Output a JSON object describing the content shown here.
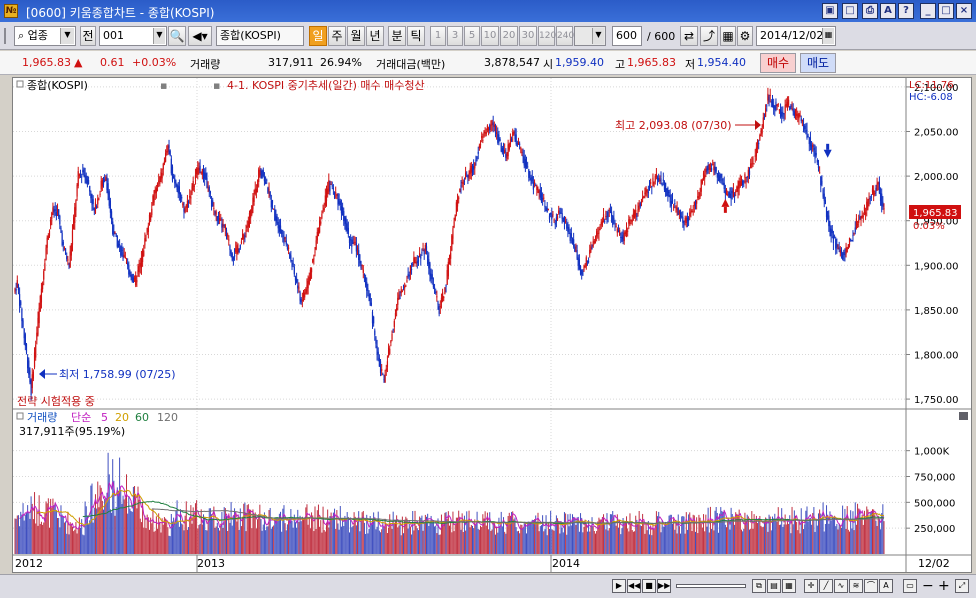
{
  "window": {
    "title": "[0600] 키움종합차트 - 종합(KOSPI)",
    "icon_label": "№"
  },
  "toolbar": {
    "market_select": "업종",
    "prev_label": "전",
    "code_value": "001",
    "name_value": "종합(KOSPI)",
    "periods": [
      "일",
      "주",
      "월",
      "년",
      "분",
      "틱"
    ],
    "minute_options": [
      "1",
      "3",
      "5",
      "10",
      "20",
      "30",
      "120",
      "240"
    ],
    "count_value": "600",
    "count_total": "/ 600",
    "date_value": "2014/12/02"
  },
  "quote": {
    "price": "1,965.83",
    "change": "0.61",
    "change_pct": "+0.03%",
    "volume_label": "거래량",
    "volume": "317,911",
    "volume_pct": "26.94%",
    "value_label": "거래대금(백만)",
    "value": "3,878,547",
    "open_label": "시",
    "open": "1,959.40",
    "high_label": "고",
    "high": "1,965.83",
    "low_label": "저",
    "low": "1,954.40",
    "buy_label": "매수",
    "sell_label": "매도"
  },
  "chart": {
    "main_tag": "종합(KOSPI)",
    "strategy": "4-1. KOSPI 중기추세(일간) 매수 매수청산",
    "lc_label": "LC:11.76",
    "hc_label": "HC:-6.08",
    "high_annotation": "최고 2,093.08 (07/30)",
    "low_annotation": "최저 1,758.99 (07/25)",
    "strategy_status": "전략 시험적용 중",
    "current_price_tag": "1,965.83",
    "current_pct_tag": "0.03%",
    "price_axis": [
      "2,100.00",
      "2,050.00",
      "2,000.00",
      "1,950.00",
      "1,900.00",
      "1,850.00",
      "1,800.00",
      "1,750.00"
    ],
    "volume_legend_title": "거래량",
    "volume_legend_ma": "단순",
    "volume_ma_periods": [
      "5",
      "20",
      "60",
      "120"
    ],
    "volume_readout": "317,911주(95.19%)",
    "volume_axis": [
      "1,000K",
      "750,000",
      "500,000",
      "250,000"
    ],
    "x_axis": [
      "2012",
      "2013",
      "2014"
    ],
    "x_axis_end": "12/02",
    "colors": {
      "up": "#d01010",
      "down": "#1030c0",
      "ma5": "#c020c0",
      "ma20": "#d0a000",
      "ma60": "#208040",
      "ma120": "#707070"
    }
  },
  "chart_data": {
    "type": "candlestick",
    "price_range": [
      1740,
      2110
    ],
    "volume_range": [
      0,
      1200000
    ],
    "price_path": [
      [
        0,
        1870
      ],
      [
        3,
        1880
      ],
      [
        8,
        1830
      ],
      [
        12,
        1790
      ],
      [
        15,
        1759
      ],
      [
        18,
        1800
      ],
      [
        22,
        1850
      ],
      [
        28,
        1920
      ],
      [
        33,
        1960
      ],
      [
        38,
        1960
      ],
      [
        43,
        1920
      ],
      [
        48,
        1900
      ],
      [
        52,
        1950
      ],
      [
        56,
        2000
      ],
      [
        60,
        2005
      ],
      [
        64,
        1995
      ],
      [
        70,
        1960
      ],
      [
        76,
        1990
      ],
      [
        80,
        2000
      ],
      [
        86,
        1940
      ],
      [
        92,
        1920
      ],
      [
        98,
        1900
      ],
      [
        105,
        1880
      ],
      [
        110,
        1900
      ],
      [
        116,
        1940
      ],
      [
        122,
        1980
      ],
      [
        128,
        2000
      ],
      [
        134,
        2035
      ],
      [
        138,
        2000
      ],
      [
        142,
        1990
      ],
      [
        148,
        1960
      ],
      [
        155,
        1985
      ],
      [
        160,
        2010
      ],
      [
        166,
        2000
      ],
      [
        172,
        1970
      ],
      [
        178,
        1950
      ],
      [
        184,
        1940
      ],
      [
        190,
        1910
      ],
      [
        196,
        1920
      ],
      [
        202,
        1940
      ],
      [
        208,
        1970
      ],
      [
        214,
        2010
      ],
      [
        220,
        1990
      ],
      [
        226,
        1960
      ],
      [
        232,
        1940
      ],
      [
        238,
        1920
      ],
      [
        244,
        1890
      ],
      [
        250,
        1860
      ],
      [
        256,
        1880
      ],
      [
        262,
        1920
      ],
      [
        268,
        1960
      ],
      [
        274,
        1990
      ],
      [
        280,
        1980
      ],
      [
        286,
        1960
      ],
      [
        292,
        1930
      ],
      [
        298,
        1920
      ],
      [
        304,
        1890
      ],
      [
        310,
        1860
      ],
      [
        316,
        1800
      ],
      [
        322,
        1770
      ],
      [
        328,
        1820
      ],
      [
        334,
        1860
      ],
      [
        340,
        1880
      ],
      [
        346,
        1900
      ],
      [
        352,
        1910
      ],
      [
        358,
        1920
      ],
      [
        364,
        1880
      ],
      [
        370,
        1850
      ],
      [
        376,
        1880
      ],
      [
        382,
        1940
      ],
      [
        388,
        1990
      ],
      [
        394,
        2000
      ],
      [
        400,
        2010
      ],
      [
        406,
        2040
      ],
      [
        410,
        2050
      ],
      [
        416,
        2060
      ],
      [
        422,
        2040
      ],
      [
        428,
        2020
      ],
      [
        434,
        2050
      ],
      [
        440,
        2030
      ],
      [
        446,
        2010
      ],
      [
        452,
        1990
      ],
      [
        458,
        1980
      ],
      [
        464,
        1960
      ],
      [
        470,
        1950
      ],
      [
        476,
        1960
      ],
      [
        482,
        1940
      ],
      [
        488,
        1920
      ],
      [
        494,
        1890
      ],
      [
        500,
        1910
      ],
      [
        506,
        1930
      ],
      [
        512,
        1950
      ],
      [
        518,
        1960
      ],
      [
        524,
        1940
      ],
      [
        530,
        1930
      ],
      [
        536,
        1950
      ],
      [
        542,
        1960
      ],
      [
        548,
        1980
      ],
      [
        554,
        1990
      ],
      [
        560,
        2000
      ],
      [
        566,
        1990
      ],
      [
        572,
        1970
      ],
      [
        578,
        1960
      ],
      [
        584,
        1950
      ],
      [
        590,
        1960
      ],
      [
        596,
        1980
      ],
      [
        602,
        2010
      ],
      [
        608,
        2010
      ],
      [
        614,
        2000
      ],
      [
        620,
        1980
      ],
      [
        626,
        1980
      ],
      [
        632,
        1990
      ],
      [
        638,
        2000
      ],
      [
        644,
        2020
      ],
      [
        650,
        2050
      ],
      [
        656,
        2090
      ],
      [
        662,
        2080
      ],
      [
        668,
        2070
      ],
      [
        674,
        2080
      ],
      [
        680,
        2070
      ],
      [
        686,
        2060
      ],
      [
        692,
        2040
      ],
      [
        698,
        2020
      ],
      [
        704,
        1980
      ],
      [
        710,
        1940
      ],
      [
        716,
        1920
      ],
      [
        722,
        1910
      ],
      [
        728,
        1930
      ],
      [
        734,
        1950
      ],
      [
        740,
        1960
      ],
      [
        746,
        1980
      ],
      [
        752,
        1990
      ],
      [
        756,
        1966
      ]
    ],
    "bars": 757,
    "markers": [
      {
        "type": "buy",
        "bar": 618,
        "price": 1970
      },
      {
        "type": "sell",
        "bar": 707,
        "price": 2025
      }
    ],
    "last": {
      "price": 1965.83,
      "volume": 317911
    }
  }
}
